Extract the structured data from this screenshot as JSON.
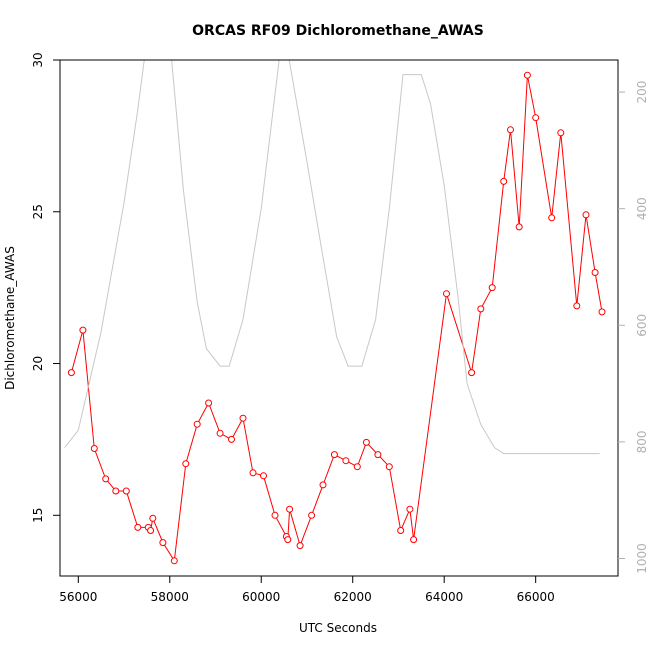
{
  "chart_data": {
    "type": "line",
    "title": "ORCAS RF09 Dichloromethane_AWAS",
    "xlabel": "UTC Seconds",
    "ylabel": "Dichloromethane_AWAS",
    "xlim": [
      55600,
      67800
    ],
    "ylim": [
      13.0,
      30.0
    ],
    "xticks": [
      56000,
      58000,
      60000,
      62000,
      64000,
      66000
    ],
    "yticks": [
      15,
      20,
      25,
      30
    ],
    "y2lim": [
      1030,
      145
    ],
    "y2ticks": [
      200,
      400,
      600,
      800,
      1000
    ],
    "grid": false,
    "series": [
      {
        "color": "#ff0000",
        "axis": "left",
        "marker": "open-circle",
        "x": [
          55850,
          56100,
          56350,
          56600,
          56820,
          57050,
          57300,
          57530,
          57580,
          57630,
          57850,
          58100,
          58350,
          58600,
          58850,
          59100,
          59350,
          59600,
          59820,
          60050,
          60300,
          60550,
          60580,
          60620,
          60850,
          61100,
          61350,
          61600,
          61850,
          62100,
          62300,
          62550,
          62800,
          63050,
          63250,
          63330,
          64050,
          64600,
          64800,
          65050,
          65300,
          65450,
          65640,
          65820,
          66000,
          66350,
          66550,
          66900,
          67100,
          67300,
          67450
        ],
        "y": [
          19.7,
          21.1,
          17.2,
          16.2,
          15.8,
          15.8,
          14.6,
          14.6,
          14.5,
          14.9,
          14.1,
          13.5,
          16.7,
          18.0,
          18.7,
          17.7,
          17.5,
          18.2,
          16.4,
          16.3,
          15.0,
          14.3,
          14.2,
          15.2,
          14.0,
          15.0,
          16.0,
          17.0,
          16.8,
          16.6,
          17.4,
          17.0,
          16.6,
          14.5,
          15.2,
          14.2,
          22.3,
          19.7,
          21.8,
          22.5,
          26.0,
          27.7,
          24.5,
          29.5,
          28.1,
          24.8,
          27.6,
          21.9,
          24.9,
          23.0,
          21.7
        ]
      },
      {
        "color": "#c8c8c8",
        "axis": "right",
        "x": [
          55700,
          56000,
          56500,
          57000,
          57300,
          57500,
          58000,
          58300,
          58600,
          58800,
          59100,
          59300,
          59600,
          60000,
          60400,
          60600,
          61000,
          61300,
          61650,
          61900,
          62200,
          62500,
          62800,
          63100,
          63500,
          63700,
          64000,
          64300,
          64500,
          64800,
          65100,
          65300,
          65600,
          66000,
          66500,
          67000,
          67400
        ],
        "y": [
          810,
          780,
          610,
          390,
          230,
          110,
          110,
          370,
          560,
          640,
          670,
          670,
          590,
          400,
          140,
          140,
          320,
          460,
          620,
          670,
          670,
          590,
          400,
          170,
          170,
          220,
          360,
          550,
          700,
          770,
          810,
          820,
          820,
          820,
          820,
          820,
          820
        ]
      }
    ]
  }
}
